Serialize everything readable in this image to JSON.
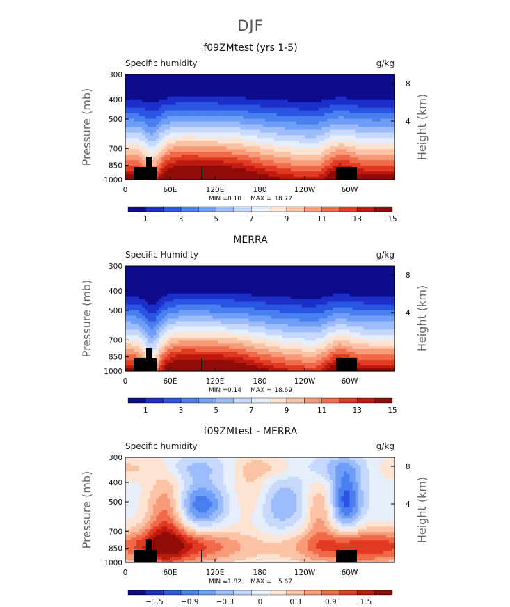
{
  "figure_title": "DJF",
  "chart_data": [
    {
      "type": "heatmap",
      "title": "f09ZMtest (yrs 1-5)",
      "left_label": "Specific humidity",
      "units": "g/kg",
      "ylabel": "Pressure (mb)",
      "ylabel2": "Height (km)",
      "yticks": [
        "300",
        "400",
        "500",
        "700",
        "850",
        "1000"
      ],
      "yticks2": [
        "8",
        "4"
      ],
      "xticks": [
        "0",
        "60E",
        "120E",
        "180",
        "120W",
        "60W"
      ],
      "min_label": "MIN =",
      "min": "0.10",
      "max_label": "MAX =",
      "max": "18.77",
      "colorbar_labels": [
        "1",
        "3",
        "5",
        "7",
        "9",
        "11",
        "13",
        "15"
      ]
    },
    {
      "type": "heatmap",
      "title": "MERRA",
      "left_label": "Specific Humidity",
      "units": "g/kg",
      "ylabel": "Pressure (mb)",
      "ylabel2": "Height (km)",
      "yticks": [
        "300",
        "400",
        "500",
        "700",
        "850",
        "1000"
      ],
      "yticks2": [
        "8",
        "4"
      ],
      "xticks": [
        "0",
        "60E",
        "120E",
        "180",
        "120W",
        "60W"
      ],
      "min_label": "MIN =",
      "min": "0.14",
      "max_label": "MAX =",
      "max": "18.69",
      "colorbar_labels": [
        "1",
        "3",
        "5",
        "7",
        "9",
        "11",
        "13",
        "15"
      ]
    },
    {
      "type": "heatmap",
      "title": "f09ZMtest - MERRA",
      "left_label": "Specific humidity",
      "units": "g/kg",
      "ylabel": "Pressure (mb)",
      "ylabel2": "Height (km)",
      "yticks": [
        "300",
        "400",
        "500",
        "700",
        "850",
        "1000"
      ],
      "yticks2": [
        "8",
        "4"
      ],
      "xticks": [
        "0",
        "60E",
        "120E",
        "180",
        "120W",
        "60W"
      ],
      "min_label": "MIN =",
      "min": "−1.82",
      "max_label": "MAX =",
      "max": "5.67",
      "colorbar_labels": [
        "−1.5",
        "−0.9",
        "−0.3",
        "0",
        "0.3",
        "0.9",
        "1.5"
      ]
    }
  ],
  "colors": {
    "palette": [
      "#0c0c8c",
      "#1d2fc9",
      "#2a55e3",
      "#4a7ff0",
      "#6f9ef7",
      "#9cbcfb",
      "#c6d8fb",
      "#e6eefc",
      "#fde4d2",
      "#fbc3a6",
      "#f79a78",
      "#f06a4a",
      "#e03a22",
      "#bf1a10",
      "#8f0c08"
    ],
    "terrain": "#000000"
  }
}
